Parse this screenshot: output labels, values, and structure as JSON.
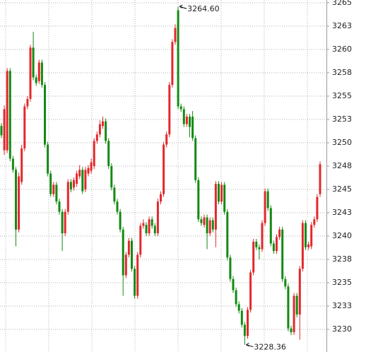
{
  "chart_data": {
    "type": "candlestick",
    "up_color": "#e3282c",
    "down_color": "#138a13",
    "grid": true,
    "ylim": [
      3227.58,
      3265.3
    ],
    "yticks": [
      3230,
      {
        "value": 3232.5,
        "label": "3233"
      },
      3235,
      {
        "value": 3237.5,
        "label": "3238"
      },
      3240,
      {
        "value": 3242.5,
        "label": "3243"
      },
      3245,
      {
        "value": 3247.5,
        "label": "3248"
      },
      3250,
      {
        "value": 3252.5,
        "label": "3253"
      },
      3255,
      {
        "value": 3257.5,
        "label": "3258"
      },
      3260,
      {
        "value": 3262.5,
        "label": "3263"
      },
      3265
    ],
    "annotations": [
      "3264.60",
      "3228.36"
    ],
    "open": [
      3251.8,
      3249.2,
      3249.2,
      3257.7,
      3248.3,
      3247.1,
      3240.7,
      3245.8,
      3249.4,
      3253.9,
      3254.7,
      3260.2,
      3257.0,
      3256.6,
      3258.6,
      3256.2,
      3249.8,
      3246.7,
      3244.5,
      3245.5,
      3243.7,
      3242.6,
      3240.3,
      3242.6,
      3245.8,
      3245.2,
      3245.6,
      3246.4,
      3247.1,
      3245.0,
      3246.7,
      3247.0,
      3247.5,
      3250.2,
      3250.9,
      3251.8,
      3252.3,
      3250.2,
      3247.5,
      3245.2,
      3243.7,
      3242.6,
      3240.7,
      3235.8,
      3238.0,
      3239.5,
      3236.5,
      3233.6,
      3238.0,
      3241.1,
      3241.2,
      3240.3,
      3241.8,
      3241.1,
      3240.3,
      3243.7,
      3244.5,
      3249.8,
      3250.9,
      3256.2,
      3260.8,
      3264.2,
      3253.9,
      3253.6,
      3252.0,
      3252.8,
      3252.8,
      3250.5,
      3246.0,
      3241.8,
      3241.2,
      3242.0,
      3240.3,
      3241.7,
      3240.7,
      3245.6,
      3243.7,
      3245.5,
      3242.6,
      3237.7,
      3235.4,
      3234.2,
      3232.7,
      3232.0,
      3230.5,
      3229.3,
      3232.1,
      3236.1,
      3239.4,
      3238.8,
      3238.6,
      3241.4,
      3244.8,
      3243.0,
      3239.2,
      3238.4,
      3239.9,
      3240.7,
      3235.4,
      3234.6,
      3230.1,
      3229.7,
      3233.6,
      3231.6,
      3236.5,
      3241.4,
      3238.8,
      3238.9,
      3241.2,
      3241.8,
      3244.5
    ],
    "high": [
      3252.1,
      3254.0,
      3258.0,
      3258.0,
      3248.6,
      3247.4,
      3246.8,
      3249.8,
      3254.2,
      3255.0,
      3260.5,
      3261.9,
      3257.3,
      3258.9,
      3258.9,
      3256.5,
      3250.1,
      3247.0,
      3245.8,
      3245.8,
      3244.0,
      3242.9,
      3242.9,
      3246.1,
      3246.1,
      3246.3,
      3247.0,
      3247.6,
      3247.4,
      3247.4,
      3247.6,
      3248.3,
      3250.5,
      3251.2,
      3252.4,
      3252.8,
      3252.6,
      3250.5,
      3247.8,
      3245.5,
      3244.0,
      3242.9,
      3241.0,
      3238.3,
      3239.8,
      3239.8,
      3236.8,
      3238.3,
      3241.4,
      3241.8,
      3241.5,
      3242.1,
      3242.1,
      3241.4,
      3244.0,
      3244.8,
      3250.1,
      3251.2,
      3256.5,
      3261.1,
      3262.7,
      3264.6,
      3254.2,
      3253.9,
      3253.1,
      3253.1,
      3253.4,
      3250.8,
      3246.3,
      3242.1,
      3242.3,
      3242.3,
      3242.0,
      3242.0,
      3245.9,
      3245.9,
      3245.8,
      3245.8,
      3242.9,
      3238.0,
      3235.7,
      3234.5,
      3233.0,
      3232.3,
      3230.8,
      3232.4,
      3236.4,
      3239.7,
      3239.7,
      3239.1,
      3241.7,
      3245.1,
      3245.1,
      3243.3,
      3239.5,
      3240.2,
      3241.0,
      3241.0,
      3235.7,
      3234.9,
      3230.4,
      3233.9,
      3233.9,
      3236.8,
      3241.7,
      3241.7,
      3239.4,
      3241.5,
      3242.1,
      3244.5,
      3248.0
    ],
    "low": [
      3250.5,
      3248.7,
      3248.9,
      3248.0,
      3246.8,
      3238.9,
      3240.4,
      3245.5,
      3249.1,
      3253.6,
      3254.4,
      3256.7,
      3256.1,
      3256.3,
      3255.9,
      3249.5,
      3246.4,
      3244.2,
      3244.2,
      3243.4,
      3242.3,
      3238.4,
      3240.0,
      3242.3,
      3244.7,
      3244.9,
      3245.3,
      3246.1,
      3244.5,
      3244.7,
      3246.4,
      3246.7,
      3247.2,
      3249.9,
      3250.6,
      3251.5,
      3249.9,
      3247.2,
      3244.9,
      3243.4,
      3242.3,
      3240.4,
      3233.6,
      3235.5,
      3237.7,
      3236.2,
      3233.3,
      3233.3,
      3237.7,
      3240.8,
      3240.0,
      3240.0,
      3240.8,
      3240.0,
      3240.0,
      3243.4,
      3244.2,
      3249.5,
      3250.6,
      3255.9,
      3260.5,
      3253.6,
      3253.3,
      3251.7,
      3251.7,
      3250.6,
      3250.2,
      3245.7,
      3241.5,
      3241.1,
      3240.9,
      3238.6,
      3240.0,
      3240.4,
      3238.8,
      3243.4,
      3243.4,
      3242.3,
      3237.4,
      3235.1,
      3233.9,
      3232.4,
      3231.7,
      3230.2,
      3228.36,
      3229.0,
      3231.8,
      3235.8,
      3238.5,
      3237.5,
      3238.3,
      3241.1,
      3242.7,
      3238.9,
      3238.1,
      3238.1,
      3239.6,
      3235.1,
      3234.3,
      3229.8,
      3229.4,
      3229.4,
      3231.3,
      3228.9,
      3236.2,
      3238.5,
      3238.5,
      3238.6,
      3240.9,
      3241.5,
      3244.2
    ],
    "close": [
      3250.8,
      3253.6,
      3257.7,
      3248.3,
      3247.1,
      3240.7,
      3246.4,
      3249.4,
      3253.9,
      3254.7,
      3260.2,
      3257.0,
      3256.4,
      3258.6,
      3256.2,
      3249.8,
      3246.7,
      3244.5,
      3245.5,
      3243.7,
      3242.6,
      3240.3,
      3242.6,
      3245.8,
      3245.0,
      3246.0,
      3246.7,
      3247.1,
      3244.8,
      3247.1,
      3247.3,
      3247.9,
      3250.2,
      3250.9,
      3252.0,
      3252.3,
      3250.2,
      3247.5,
      3245.2,
      3243.7,
      3242.6,
      3240.7,
      3235.8,
      3238.0,
      3239.5,
      3236.5,
      3233.6,
      3238.0,
      3241.1,
      3241.4,
      3240.3,
      3241.8,
      3241.1,
      3240.3,
      3243.7,
      3244.5,
      3249.8,
      3250.9,
      3256.2,
      3260.8,
      3262.3,
      3253.9,
      3253.6,
      3252.0,
      3252.8,
      3251.7,
      3250.5,
      3246.0,
      3241.8,
      3241.4,
      3242.0,
      3240.3,
      3241.7,
      3240.7,
      3245.6,
      3243.7,
      3245.5,
      3242.6,
      3237.7,
      3235.4,
      3234.2,
      3232.7,
      3232.0,
      3230.5,
      3229.3,
      3232.1,
      3236.1,
      3239.4,
      3238.8,
      3238.6,
      3241.4,
      3244.8,
      3243.0,
      3239.2,
      3238.4,
      3239.9,
      3240.7,
      3235.4,
      3234.6,
      3230.1,
      3229.7,
      3233.6,
      3231.6,
      3236.5,
      3241.4,
      3238.8,
      3239.1,
      3241.2,
      3241.8,
      3244.2,
      3247.7
    ]
  }
}
